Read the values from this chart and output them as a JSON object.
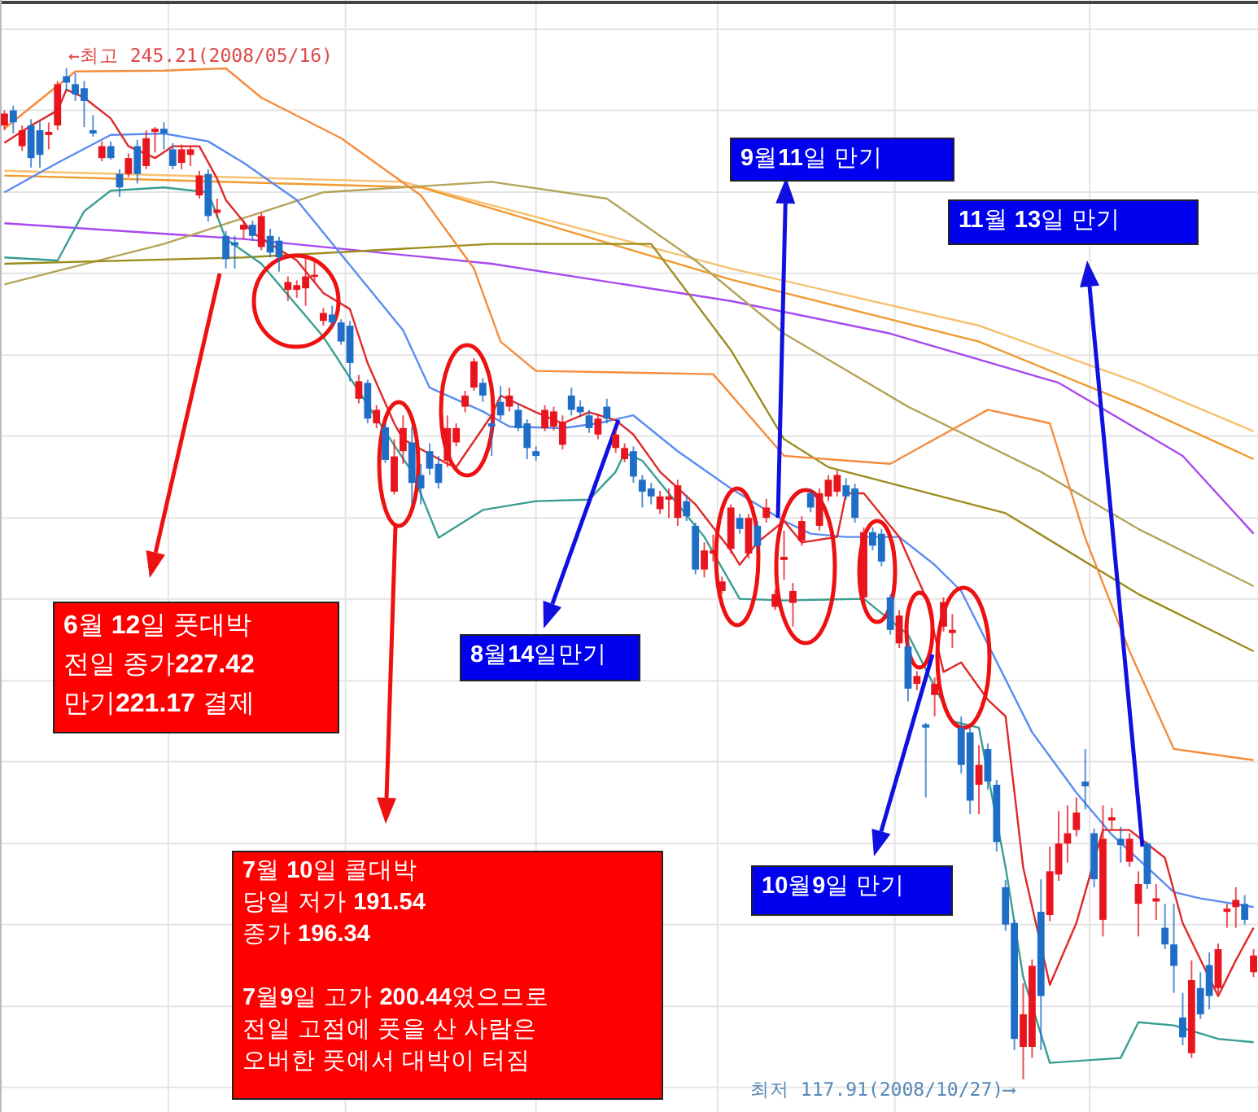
{
  "chart_data": {
    "type": "candlestick",
    "categories": [
      null,
      null,
      null,
      null,
      null,
      null,
      null,
      null,
      null,
      null,
      null,
      null,
      null,
      null,
      null,
      null,
      null,
      null,
      null,
      null,
      null,
      null,
      null,
      null,
      null,
      null,
      null,
      null,
      null,
      null,
      null,
      null,
      null,
      null,
      null,
      null,
      null,
      null,
      null,
      null,
      null,
      null,
      null,
      null,
      null,
      null,
      null,
      null,
      null,
      null,
      null,
      null,
      null,
      null,
      null,
      null,
      null,
      null,
      null,
      null,
      null,
      null,
      null,
      null,
      null,
      null,
      null,
      null,
      null,
      null,
      null,
      null,
      null,
      null,
      null,
      null,
      null,
      null,
      null,
      null,
      null,
      null,
      null,
      null,
      null,
      null,
      null,
      null,
      null,
      null,
      null,
      null,
      null,
      null,
      null,
      null,
      null,
      null,
      null,
      null,
      null,
      null,
      null,
      null,
      null,
      null,
      null,
      null,
      null,
      null,
      null,
      null,
      null,
      null,
      null,
      null,
      null,
      null,
      null,
      null,
      null,
      null,
      null,
      null,
      null,
      null,
      null,
      null,
      null,
      null,
      null,
      null,
      null,
      null,
      null,
      null,
      null,
      null,
      null,
      null,
      null,
      null
    ],
    "ohlc": [
      [
        238.0,
        239.9,
        237.4,
        239.5
      ],
      [
        239.9,
        240.5,
        237.0,
        238.4
      ],
      [
        235.4,
        238.0,
        234.8,
        237.4
      ],
      [
        238.0,
        238.8,
        232.7,
        233.9
      ],
      [
        237.4,
        238.6,
        232.7,
        234.3
      ],
      [
        236.8,
        238.4,
        235.0,
        237.2
      ],
      [
        238.0,
        243.6,
        237.4,
        243.2
      ],
      [
        244.2,
        245.21,
        242.3,
        243.4
      ],
      [
        243.2,
        244.6,
        241.1,
        241.9
      ],
      [
        242.7,
        243.6,
        237.8,
        241.1
      ],
      [
        237.4,
        239.3,
        236.6,
        237.0
      ],
      [
        233.9,
        236.0,
        233.5,
        235.4
      ],
      [
        235.4,
        236.0,
        233.7,
        233.9
      ],
      [
        231.9,
        232.5,
        229.0,
        230.2
      ],
      [
        231.9,
        234.5,
        231.5,
        233.9
      ],
      [
        235.4,
        236.2,
        230.7,
        231.9
      ],
      [
        232.9,
        237.4,
        232.5,
        236.4
      ],
      [
        237.2,
        237.8,
        234.6,
        237.6
      ],
      [
        237.6,
        238.4,
        235.0,
        237.0
      ],
      [
        235.0,
        235.8,
        232.5,
        232.9
      ],
      [
        233.3,
        235.6,
        232.5,
        235.0
      ],
      [
        234.3,
        235.4,
        232.9,
        235.0
      ],
      [
        229.2,
        232.3,
        228.8,
        231.7
      ],
      [
        231.9,
        232.5,
        225.9,
        226.6
      ],
      [
        227.0,
        228.8,
        226.4,
        227.42
      ],
      [
        224.1,
        224.7,
        220.0,
        221.17
      ],
      [
        223.3,
        224.1,
        220.0,
        222.9
      ],
      [
        224.9,
        226.1,
        223.7,
        225.5
      ],
      [
        225.5,
        226.0,
        223.5,
        224.1
      ],
      [
        222.7,
        227.0,
        222.3,
        226.6
      ],
      [
        224.1,
        225.0,
        221.4,
        222.0
      ],
      [
        223.5,
        224.0,
        219.6,
        221.4
      ],
      [
        217.3,
        219.0,
        215.9,
        218.3
      ],
      [
        217.3,
        218.5,
        216.3,
        217.9
      ],
      [
        217.5,
        221.4,
        215.3,
        219.0
      ],
      [
        219.0,
        221.0,
        218.3,
        219.2
      ],
      [
        213.4,
        215.0,
        212.8,
        214.4
      ],
      [
        214.2,
        215.3,
        212.6,
        213.2
      ],
      [
        213.2,
        213.6,
        210.4,
        210.8
      ],
      [
        212.8,
        213.4,
        205.8,
        208.1
      ],
      [
        203.6,
        206.6,
        203.0,
        205.8
      ],
      [
        205.6,
        206.0,
        200.5,
        201.1
      ],
      [
        200.5,
        202.8,
        199.9,
        202.2
      ],
      [
        200.0,
        200.44,
        195.5,
        195.9
      ],
      [
        191.9,
        198.5,
        191.54,
        196.34
      ],
      [
        197.0,
        201.5,
        195.4,
        199.9
      ],
      [
        198.1,
        200.1,
        190.3,
        193.0
      ],
      [
        194.0,
        195.4,
        190.3,
        192.3
      ],
      [
        197.0,
        198.0,
        194.0,
        194.8
      ],
      [
        195.4,
        196.4,
        192.3,
        193.0
      ],
      [
        195.8,
        201.5,
        195.0,
        199.9
      ],
      [
        198.1,
        200.5,
        197.6,
        199.9
      ],
      [
        202.6,
        204.6,
        201.9,
        204.0
      ],
      [
        205.0,
        208.7,
        204.6,
        208.3
      ],
      [
        205.6,
        206.2,
        203.2,
        204.0
      ],
      [
        200.5,
        201.0,
        196.4,
        200.1
      ],
      [
        203.2,
        205.2,
        200.9,
        201.5
      ],
      [
        202.6,
        205.0,
        202.0,
        204.0
      ],
      [
        202.2,
        203.0,
        199.5,
        199.9
      ],
      [
        200.5,
        201.0,
        196.0,
        197.4
      ],
      [
        197.0,
        197.6,
        195.8,
        196.4
      ],
      [
        199.9,
        202.8,
        199.5,
        202.2
      ],
      [
        200.1,
        202.6,
        199.6,
        202.0
      ],
      [
        197.8,
        201.5,
        197.2,
        200.7
      ],
      [
        204.0,
        205.0,
        201.5,
        202.2
      ],
      [
        202.6,
        203.4,
        201.3,
        201.9
      ],
      [
        201.5,
        202.2,
        199.3,
        199.9
      ],
      [
        199.1,
        201.7,
        198.5,
        201.1
      ],
      [
        202.6,
        203.6,
        200.5,
        201.1
      ],
      [
        197.4,
        199.7,
        196.8,
        199.1
      ],
      [
        196.0,
        198.0,
        195.6,
        197.4
      ],
      [
        197.0,
        197.6,
        193.0,
        193.8
      ],
      [
        193.4,
        194.0,
        189.9,
        191.9
      ],
      [
        192.3,
        193.0,
        190.3,
        191.3
      ],
      [
        189.7,
        192.0,
        189.1,
        191.3
      ],
      [
        190.9,
        192.3,
        188.6,
        191.3
      ],
      [
        188.6,
        193.4,
        187.6,
        192.7
      ],
      [
        190.7,
        191.5,
        188.2,
        188.8
      ],
      [
        187.6,
        188.0,
        181.5,
        182.1
      ],
      [
        182.1,
        185.5,
        181.1,
        184.5
      ],
      [
        184.1,
        186.5,
        183.1,
        184.5
      ],
      [
        179.4,
        181.2,
        179.0,
        180.6
      ],
      [
        184.7,
        190.3,
        184.1,
        189.9
      ],
      [
        188.6,
        189.1,
        186.6,
        187.2
      ],
      [
        184.1,
        189.1,
        183.5,
        188.6
      ],
      [
        187.6,
        188.2,
        184.5,
        185.1
      ],
      [
        188.6,
        191.0,
        188.0,
        189.9
      ],
      [
        177.4,
        179.6,
        177.0,
        179.0
      ],
      [
        183.3,
        187.0,
        180.8,
        183.7
      ],
      [
        177.9,
        180.4,
        174.9,
        179.4
      ],
      [
        185.7,
        188.8,
        185.1,
        188.2
      ],
      [
        191.7,
        192.3,
        189.3,
        189.9
      ],
      [
        187.6,
        192.3,
        187.0,
        191.7
      ],
      [
        191.3,
        194.0,
        190.7,
        193.4
      ],
      [
        191.9,
        194.6,
        191.3,
        194.0
      ],
      [
        192.7,
        193.6,
        190.9,
        191.3
      ],
      [
        192.3,
        192.9,
        188.0,
        188.6
      ],
      [
        178.6,
        187.4,
        177.6,
        186.8
      ],
      [
        186.8,
        187.4,
        184.5,
        185.1
      ],
      [
        186.6,
        187.2,
        182.5,
        183.1
      ],
      [
        178.6,
        179.0,
        173.9,
        174.5
      ],
      [
        172.8,
        177.0,
        172.2,
        176.3
      ],
      [
        172.4,
        173.0,
        165.5,
        167.1
      ],
      [
        167.7,
        169.3,
        166.9,
        168.7
      ],
      [
        162.6,
        162.8,
        153.4,
        162.2
      ],
      [
        166.3,
        168.5,
        163.6,
        167.7
      ],
      [
        174.9,
        178.6,
        174.3,
        178.0
      ],
      [
        174.1,
        176.5,
        172.2,
        174.5
      ],
      [
        162.2,
        163.6,
        156.4,
        157.5
      ],
      [
        161.6,
        162.2,
        151.3,
        153.0
      ],
      [
        155.0,
        160.0,
        151.3,
        157.5
      ],
      [
        159.5,
        160.2,
        154.4,
        155.4
      ],
      [
        155.0,
        155.6,
        146.6,
        147.8
      ],
      [
        142.1,
        143.0,
        136.6,
        137.4
      ],
      [
        137.6,
        138.0,
        121.6,
        123.0
      ],
      [
        122.0,
        130.0,
        117.91,
        126.1
      ],
      [
        122.0,
        133.0,
        120.6,
        132.2
      ],
      [
        139.0,
        143.1,
        121.6,
        128.4
      ],
      [
        138.6,
        147.2,
        137.8,
        144.1
      ],
      [
        143.7,
        151.7,
        142.9,
        147.6
      ],
      [
        147.6,
        152.4,
        145.2,
        148.9
      ],
      [
        149.3,
        153.4,
        148.5,
        151.5
      ],
      [
        155.4,
        159.5,
        151.9,
        154.8
      ],
      [
        148.9,
        149.5,
        142.1,
        143.1
      ],
      [
        138.0,
        152.4,
        135.9,
        148.2
      ],
      [
        150.5,
        152.1,
        149.3,
        150.9
      ],
      [
        148.2,
        149.7,
        145.2,
        147.4
      ],
      [
        145.3,
        148.9,
        144.7,
        148.2
      ],
      [
        140.0,
        144.1,
        135.9,
        142.5
      ],
      [
        147.6,
        147.8,
        141.9,
        142.5
      ],
      [
        140.3,
        142.5,
        138.0,
        140.7
      ],
      [
        137.0,
        140.0,
        134.3,
        134.9
      ],
      [
        134.9,
        140.0,
        128.8,
        132.2
      ],
      [
        125.7,
        128.8,
        122.2,
        123.2
      ],
      [
        121.2,
        132.9,
        120.6,
        130.4
      ],
      [
        129.4,
        131.4,
        125.5,
        126.1
      ],
      [
        132.3,
        133.9,
        126.7,
        128.4
      ],
      [
        129.4,
        135.0,
        128.8,
        134.3
      ],
      [
        139.0,
        140.0,
        137.0,
        139.4
      ],
      [
        139.6,
        142.1,
        137.0,
        140.5
      ],
      [
        140.0,
        141.1,
        137.4,
        138.0
      ],
      [
        131.4,
        134.3,
        130.8,
        133.5
      ]
    ],
    "colors": [
      "#e8141e",
      "#1e6ec8",
      "#e8141e",
      "#1e6ec8",
      "#1e6ec8",
      "#e8141e",
      "#e8141e",
      "#1e6ec8",
      "#1e6ec8",
      "#1e6ec8",
      "#1e6ec8",
      "#e8141e",
      "#1e6ec8",
      "#1e6ec8",
      "#e8141e",
      "#1e6ec8",
      "#e8141e",
      "#e8141e",
      "#1e6ec8",
      "#1e6ec8",
      "#e8141e",
      "#e8141e",
      "#e8141e",
      "#1e6ec8",
      "#e8141e",
      "#1e6ec8",
      "#1e6ec8",
      "#e8141e",
      "#1e6ec8",
      "#e8141e",
      "#1e6ec8",
      "#1e6ec8",
      "#e8141e",
      "#e8141e",
      "#e8141e",
      "#e8141e",
      "#e8141e",
      "#1e6ec8",
      "#1e6ec8",
      "#1e6ec8",
      "#e8141e",
      "#1e6ec8",
      "#e8141e",
      "#1e6ec8",
      "#e8141e",
      "#e8141e",
      "#1e6ec8",
      "#1e6ec8",
      "#1e6ec8",
      "#1e6ec8",
      "#e8141e",
      "#e8141e",
      "#e8141e",
      "#e8141e",
      "#1e6ec8",
      "#1e6ec8",
      "#1e6ec8",
      "#e8141e",
      "#1e6ec8",
      "#1e6ec8",
      "#1e6ec8",
      "#e8141e",
      "#e8141e",
      "#e8141e",
      "#1e6ec8",
      "#1e6ec8",
      "#1e6ec8",
      "#e8141e",
      "#1e6ec8",
      "#e8141e",
      "#e8141e",
      "#1e6ec8",
      "#1e6ec8",
      "#1e6ec8",
      "#e8141e",
      "#e8141e",
      "#e8141e",
      "#1e6ec8",
      "#1e6ec8",
      "#e8141e",
      "#e8141e",
      "#e8141e",
      "#e8141e",
      "#1e6ec8",
      "#e8141e",
      "#1e6ec8",
      "#e8141e",
      "#e8141e",
      "#e8141e",
      "#e8141e",
      "#e8141e",
      "#1e6ec8",
      "#e8141e",
      "#e8141e",
      "#e8141e",
      "#1e6ec8",
      "#1e6ec8",
      "#e8141e",
      "#1e6ec8",
      "#1e6ec8",
      "#1e6ec8",
      "#e8141e",
      "#1e6ec8",
      "#e8141e",
      "#1e6ec8",
      "#e8141e",
      "#e8141e",
      "#e8141e",
      "#1e6ec8",
      "#1e6ec8",
      "#e8141e",
      "#1e6ec8",
      "#1e6ec8",
      "#1e6ec8",
      "#1e6ec8",
      "#e8141e",
      "#e8141e",
      "#1e6ec8",
      "#e8141e",
      "#e8141e",
      "#e8141e",
      "#e8141e",
      "#1e6ec8",
      "#1e6ec8",
      "#e8141e",
      "#e8141e",
      "#1e6ec8",
      "#e8141e",
      "#e8141e",
      "#1e6ec8",
      "#e8141e",
      "#1e6ec8",
      "#1e6ec8",
      "#1e6ec8",
      "#e8141e",
      "#1e6ec8",
      "#1e6ec8",
      "#e8141e",
      "#e8141e",
      "#e8141e",
      "#1e6ec8",
      "#e8141e"
    ],
    "ylim": [
      113.8,
      253.8
    ],
    "yticks": [
      {
        "value": 250.1,
        "label": null
      },
      {
        "value": 239.9,
        "label": null
      },
      {
        "value": 229.6,
        "label": null
      },
      {
        "value": 219.4,
        "label": null
      },
      {
        "value": 209.1,
        "label": null
      },
      {
        "value": 198.9,
        "label": null
      },
      {
        "value": 188.6,
        "label": null
      },
      {
        "value": 178.4,
        "label": null
      },
      {
        "value": 168.1,
        "label": null
      },
      {
        "value": 157.9,
        "label": null
      },
      {
        "value": 147.6,
        "label": null
      },
      {
        "value": 137.4,
        "label": null
      },
      {
        "value": 127.1,
        "label": null
      },
      {
        "value": 116.9,
        "label": null
      }
    ],
    "grid": true,
    "series": [
      {
        "type": "line",
        "color": "#f8c070",
        "values": [
          232.3,
          null,
          null,
          null,
          null,
          null,
          null,
          null,
          null,
          null,
          null,
          null,
          null,
          null,
          null,
          null,
          null,
          null,
          null,
          null,
          null,
          null,
          null,
          null,
          null,
          null,
          null,
          null,
          null,
          null,
          null,
          null,
          null,
          null,
          null,
          null,
          null,
          null,
          null,
          null,
          null,
          null,
          null,
          null,
          null,
          230.9,
          null,
          null,
          null,
          null,
          null,
          null,
          null,
          null,
          null,
          null,
          null,
          null,
          null,
          null,
          null,
          null,
          null,
          null,
          null,
          null,
          null,
          null,
          null,
          null,
          null,
          null,
          null,
          null,
          null,
          null,
          null,
          null,
          null,
          null,
          null,
          null,
          220.0,
          null,
          null,
          null,
          null,
          null,
          null,
          null,
          null,
          null,
          null,
          null,
          null,
          null,
          null,
          null,
          null,
          null,
          null,
          null,
          null,
          null,
          null,
          null,
          null,
          null,
          null,
          null,
          212.8,
          null,
          null,
          null,
          null,
          null,
          null,
          null,
          null,
          null,
          null,
          null,
          null,
          null,
          null,
          null,
          null,
          null,
          205.6,
          null,
          null,
          null,
          null,
          null,
          null,
          null,
          null,
          null,
          null,
          null,
          null,
          199.5
        ]
      },
      {
        "type": "line",
        "color": "#f09a30",
        "values": [
          231.7,
          null,
          null,
          null,
          null,
          null,
          null,
          null,
          null,
          null,
          null,
          null,
          null,
          null,
          null,
          null,
          null,
          null,
          null,
          null,
          null,
          null,
          null,
          null,
          null,
          null,
          null,
          null,
          null,
          null,
          null,
          null,
          null,
          null,
          null,
          null,
          null,
          null,
          null,
          null,
          null,
          null,
          null,
          null,
          null,
          null,
          null,
          230.2,
          null,
          null,
          null,
          null,
          null,
          null,
          null,
          null,
          null,
          null,
          null,
          null,
          null,
          null,
          null,
          null,
          null,
          null,
          null,
          null,
          null,
          null,
          null,
          null,
          null,
          null,
          null,
          null,
          null,
          null,
          null,
          null,
          null,
          null,
          218.6,
          null,
          null,
          null,
          null,
          null,
          null,
          null,
          null,
          null,
          null,
          null,
          null,
          null,
          null,
          null,
          null,
          null,
          null,
          null,
          null,
          null,
          null,
          null,
          null,
          null,
          null,
          null,
          210.8,
          null,
          null,
          null,
          null,
          null,
          null,
          null,
          null,
          null,
          null,
          null,
          null,
          null,
          null,
          null,
          null,
          null,
          202.6,
          null,
          null,
          null,
          null,
          null,
          null,
          null,
          null,
          null,
          null,
          null,
          null,
          196.0
        ]
      },
      {
        "type": "line",
        "color": "#a848f0",
        "values": [
          225.7,
          null,
          null,
          null,
          null,
          null,
          null,
          null,
          null,
          null,
          null,
          null,
          null,
          null,
          null,
          null,
          null,
          null,
          null,
          null,
          null,
          null,
          null,
          null,
          null,
          null,
          null,
          223.7,
          null,
          null,
          null,
          null,
          null,
          null,
          null,
          null,
          null,
          null,
          null,
          null,
          null,
          null,
          null,
          null,
          null,
          null,
          null,
          null,
          null,
          null,
          null,
          null,
          null,
          null,
          null,
          220.6,
          null,
          null,
          null,
          null,
          null,
          null,
          null,
          null,
          null,
          null,
          null,
          null,
          null,
          null,
          null,
          null,
          null,
          null,
          null,
          null,
          null,
          null,
          null,
          null,
          null,
          null,
          215.9,
          null,
          null,
          null,
          null,
          null,
          null,
          null,
          null,
          null,
          null,
          null,
          null,
          null,
          null,
          null,
          null,
          null,
          211.8,
          null,
          null,
          null,
          null,
          null,
          null,
          null,
          null,
          null,
          null,
          null,
          null,
          null,
          null,
          null,
          null,
          null,
          null,
          205.6,
          null,
          null,
          null,
          null,
          null,
          null,
          null,
          null,
          null,
          null,
          null,
          null,
          null,
          196.4,
          null,
          null,
          null,
          null,
          null,
          null,
          null,
          186.6
        ]
      },
      {
        "type": "line",
        "color": "#b4a45a",
        "values": [
          218.0,
          null,
          null,
          null,
          null,
          null,
          null,
          null,
          null,
          null,
          null,
          null,
          null,
          null,
          null,
          null,
          null,
          null,
          223.1,
          null,
          null,
          null,
          null,
          null,
          null,
          null,
          null,
          null,
          null,
          null,
          null,
          null,
          null,
          null,
          null,
          null,
          229.6,
          null,
          null,
          null,
          null,
          null,
          null,
          null,
          null,
          null,
          null,
          null,
          null,
          null,
          null,
          null,
          null,
          null,
          null,
          230.9,
          null,
          null,
          null,
          null,
          null,
          null,
          null,
          null,
          null,
          null,
          null,
          null,
          228.8,
          null,
          null,
          null,
          null,
          null,
          null,
          null,
          null,
          null,
          221.0,
          null,
          null,
          null,
          null,
          null,
          null,
          null,
          null,
          null,
          211.8,
          null,
          null,
          null,
          null,
          null,
          null,
          null,
          null,
          null,
          null,
          null,
          null,
          null,
          202.6,
          null,
          null,
          null,
          null,
          null,
          null,
          null,
          null,
          null,
          null,
          null,
          null,
          null,
          null,
          194.4,
          null,
          null,
          null,
          null,
          null,
          null,
          null,
          null,
          null,
          null,
          187.2,
          null,
          null,
          null,
          null,
          null,
          null,
          null,
          null,
          null,
          null,
          null,
          null,
          180.0
        ]
      },
      {
        "type": "line",
        "color": "#9c8c1c",
        "values": [
          220.6,
          null,
          null,
          null,
          null,
          null,
          null,
          null,
          null,
          null,
          null,
          null,
          null,
          null,
          null,
          null,
          null,
          null,
          null,
          null,
          null,
          null,
          null,
          null,
          null,
          null,
          null,
          221.4,
          null,
          null,
          null,
          null,
          null,
          null,
          null,
          null,
          null,
          null,
          null,
          null,
          null,
          null,
          null,
          null,
          null,
          null,
          null,
          null,
          null,
          null,
          null,
          null,
          null,
          null,
          null,
          223.1,
          null,
          null,
          null,
          null,
          null,
          null,
          null,
          null,
          null,
          null,
          null,
          null,
          null,
          null,
          null,
          null,
          null,
          223.1,
          null,
          null,
          null,
          null,
          null,
          null,
          null,
          null,
          209.7,
          null,
          null,
          null,
          null,
          null,
          198.5,
          null,
          null,
          null,
          null,
          195.0,
          null,
          null,
          null,
          null,
          null,
          null,
          null,
          null,
          null,
          null,
          null,
          null,
          null,
          null,
          null,
          null,
          null,
          null,
          null,
          189.2,
          null,
          null,
          null,
          null,
          null,
          null,
          null,
          null,
          null,
          null,
          null,
          null,
          null,
          null,
          179.0,
          null,
          null,
          null,
          null,
          null,
          null,
          null,
          null,
          null,
          null,
          null,
          null,
          171.8
        ]
      },
      {
        "type": "line",
        "color": "#f58c3c",
        "values": [
          237.6,
          null,
          null,
          null,
          null,
          null,
          null,
          null,
          244.8,
          null,
          null,
          null,
          null,
          null,
          null,
          null,
          null,
          null,
          244.9,
          null,
          null,
          null,
          null,
          null,
          null,
          245.2,
          null,
          null,
          null,
          241.5,
          null,
          null,
          null,
          null,
          null,
          null,
          null,
          null,
          236.4,
          null,
          null,
          null,
          null,
          null,
          null,
          null,
          null,
          229.2,
          null,
          null,
          null,
          null,
          null,
          220.0,
          null,
          null,
          210.8,
          null,
          null,
          null,
          207.1,
          null,
          null,
          null,
          null,
          null,
          null,
          null,
          null,
          null,
          null,
          null,
          null,
          null,
          null,
          null,
          null,
          null,
          null,
          null,
          206.7,
          null,
          null,
          null,
          null,
          null,
          null,
          null,
          196.4,
          null,
          null,
          null,
          null,
          null,
          null,
          null,
          null,
          null,
          null,
          null,
          195.4,
          null,
          null,
          null,
          null,
          null,
          null,
          null,
          null,
          null,
          null,
          202.2,
          null,
          null,
          null,
          null,
          null,
          null,
          200.5,
          null,
          null,
          null,
          186.1,
          null,
          null,
          null,
          null,
          171.8,
          null,
          null,
          null,
          null,
          159.5,
          null,
          null,
          null,
          null,
          null,
          null,
          null,
          null,
          158.1
        ]
      },
      {
        "type": "line",
        "color": "#3a9e92",
        "values": [
          221.4,
          null,
          null,
          null,
          null,
          null,
          221.0,
          null,
          null,
          227.2,
          null,
          null,
          229.8,
          null,
          null,
          null,
          null,
          null,
          230.2,
          null,
          null,
          null,
          null,
          229.6,
          null,
          223.7,
          null,
          null,
          null,
          220.6,
          null,
          null,
          null,
          null,
          null,
          null,
          211.4,
          null,
          null,
          null,
          null,
          null,
          201.1,
          null,
          null,
          null,
          194.4,
          null,
          null,
          186.1,
          null,
          null,
          null,
          null,
          189.6,
          null,
          null,
          null,
          null,
          null,
          190.7,
          null,
          null,
          null,
          null,
          null,
          190.9,
          null,
          null,
          194.4,
          196.8,
          null,
          195.8,
          null,
          null,
          null,
          190.3,
          null,
          null,
          186.2,
          null,
          null,
          null,
          178.4,
          null,
          null,
          null,
          null,
          178.2,
          null,
          null,
          null,
          null,
          null,
          null,
          null,
          null,
          178.4,
          null,
          null,
          null,
          null,
          173.9,
          null,
          null,
          null,
          null,
          163.0,
          null,
          null,
          162.2,
          null,
          null,
          144.6,
          null,
          130.8,
          null,
          null,
          120.0,
          null,
          null,
          null,
          null,
          null,
          null,
          null,
          120.6,
          null,
          125.1,
          null,
          null,
          null,
          124.7,
          null,
          null,
          null,
          null,
          123.0,
          null,
          null,
          null,
          122.6
        ]
      },
      {
        "type": "line",
        "color": "#5a8cf0",
        "values": [
          229.6,
          null,
          null,
          null,
          null,
          null,
          233.3,
          null,
          null,
          null,
          null,
          null,
          236.8,
          null,
          null,
          null,
          null,
          null,
          237.0,
          null,
          null,
          null,
          null,
          236.0,
          null,
          null,
          null,
          233.3,
          null,
          null,
          null,
          null,
          null,
          228.6,
          null,
          null,
          null,
          null,
          null,
          220.4,
          null,
          null,
          null,
          null,
          null,
          212.2,
          null,
          null,
          205.0,
          null,
          null,
          null,
          null,
          null,
          202.0,
          null,
          null,
          200.1,
          null,
          null,
          null,
          null,
          null,
          199.9,
          null,
          null,
          null,
          200.5,
          null,
          null,
          null,
          201.5,
          null,
          null,
          null,
          null,
          197.0,
          null,
          null,
          null,
          null,
          null,
          192.3,
          null,
          null,
          null,
          null,
          null,
          188.2,
          null,
          null,
          186.6,
          null,
          null,
          null,
          186.2,
          null,
          null,
          null,
          null,
          null,
          186.2,
          null,
          null,
          null,
          182.7,
          null,
          null,
          179.4,
          null,
          null,
          null,
          null,
          null,
          null,
          null,
          161.6,
          null,
          null,
          null,
          null,
          154.0,
          null,
          null,
          null,
          148.7,
          null,
          null,
          null,
          null,
          null,
          null,
          141.5,
          null,
          null,
          140.7,
          null,
          null,
          null,
          null,
          null,
          139.6
        ]
      },
      {
        "type": "line",
        "color": "#e02828",
        "values": [
          235.8,
          null,
          null,
          238.0,
          null,
          null,
          239.9,
          242.5,
          null,
          241.5,
          null,
          null,
          238.9,
          null,
          235.4,
          null,
          null,
          233.9,
          null,
          235.4,
          null,
          null,
          235.4,
          null,
          231.3,
          228.6,
          null,
          null,
          224.5,
          null,
          null,
          null,
          null,
          221.0,
          null,
          null,
          216.9,
          null,
          null,
          214.9,
          null,
          208.1,
          null,
          null,
          200.5,
          198.5,
          null,
          null,
          null,
          null,
          195.4,
          195.0,
          null,
          null,
          null,
          201.5,
          204.0,
          null,
          null,
          null,
          201.9,
          null,
          null,
          200.5,
          null,
          null,
          201.9,
          null,
          null,
          200.9,
          null,
          199.1,
          null,
          null,
          194.4,
          null,
          null,
          null,
          190.3,
          null,
          null,
          null,
          184.5,
          182.7,
          null,
          185.5,
          null,
          null,
          188.2,
          null,
          185.5,
          null,
          null,
          null,
          186.2,
          191.7,
          null,
          191.7,
          null,
          null,
          null,
          186.2,
          null,
          null,
          178.6,
          null,
          169.2,
          null,
          170.4,
          null,
          null,
          165.7,
          null,
          163.6,
          null,
          144.6,
          null,
          null,
          129.8,
          null,
          null,
          137.6,
          null,
          null,
          149.3,
          null,
          null,
          149.3,
          null,
          null,
          null,
          145.8,
          null,
          137.6,
          null,
          null,
          null,
          128.4,
          null,
          132.9,
          null,
          137.0
        ]
      }
    ],
    "annotations": [
      "←최고 245.21(2008/05/16)",
      "최저 117.91(2008/10/27)⟶",
      "6월 12일 풋대박\n전일 종가227.42\n만기221.17 결제",
      "7월 10일 콜대박\n당일 저가 191.54\n종가 196.34\n\n7월9일 고가 200.44였으므로\n전일 고점에 풋을 산 사람은\n오버한 풋에서 대박이 터짐",
      "8월14일만기",
      "9월11일 만기",
      "11월 13일 만기",
      "10월9일 만기"
    ]
  }
}
